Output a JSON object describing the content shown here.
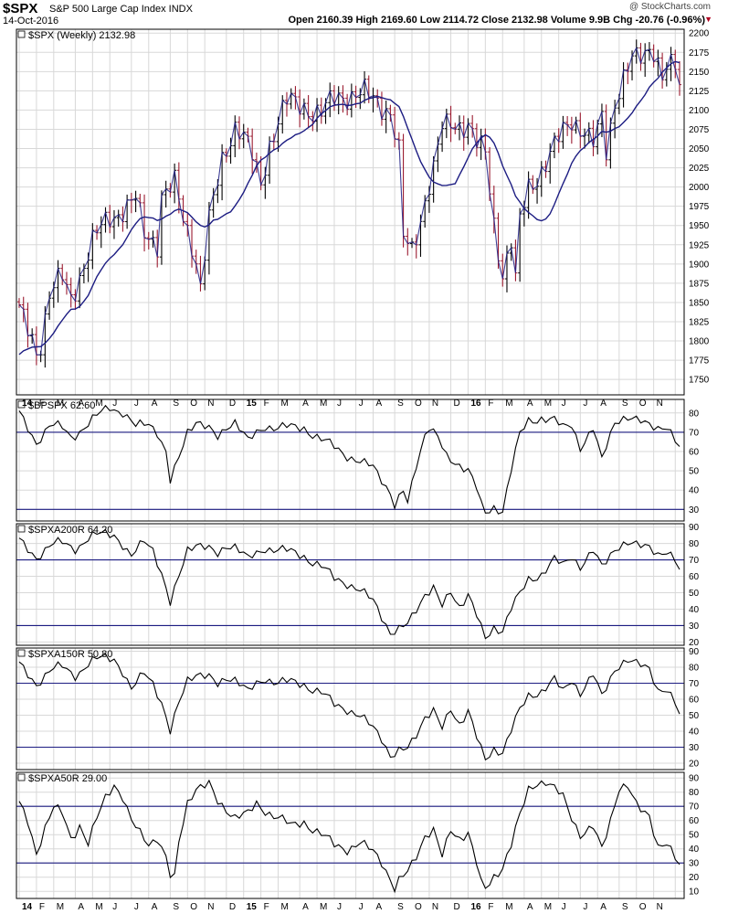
{
  "header": {
    "symbol": "$SPX",
    "name": "S&P 500 Large Cap Index INDX",
    "date": "14-Oct-2016",
    "watermark": "@ StockCharts.com",
    "ohlc": "Open 2160.39  High 2169.60  Low 2114.72  Close 2132.98  Volume 9.9B  Chg -20.76 (-0.96%)",
    "change_marker": "▼"
  },
  "colors": {
    "up": "#000000",
    "down": "#9b1b30",
    "ma": "#1c1c82",
    "grid": "#d8d8d8",
    "hline": "#1c1c82"
  },
  "chart_data": [
    {
      "type": "ohlc",
      "title": "$SPX (Weekly) 2132.98",
      "ylim": [
        1730,
        2205
      ],
      "yticks": [
        1750,
        1775,
        1800,
        1825,
        1850,
        1875,
        1900,
        1925,
        1950,
        1975,
        2000,
        2025,
        2050,
        2075,
        2100,
        2125,
        2150,
        2175,
        2200
      ],
      "overlay": "moving average",
      "anchors": [
        [
          0,
          1840
        ],
        [
          3,
          1810
        ],
        [
          4,
          1790
        ],
        [
          5,
          1800
        ],
        [
          7,
          1855
        ],
        [
          10,
          1880
        ],
        [
          12,
          1860
        ],
        [
          14,
          1890
        ],
        [
          17,
          1925
        ],
        [
          21,
          1960
        ],
        [
          24,
          1975
        ],
        [
          27,
          1985
        ],
        [
          29,
          1935
        ],
        [
          32,
          1925
        ],
        [
          33,
          1990
        ],
        [
          36,
          2010
        ],
        [
          38,
          1960
        ],
        [
          41,
          1900
        ],
        [
          42,
          1865
        ],
        [
          44,
          1960
        ],
        [
          47,
          2040
        ],
        [
          50,
          2075
        ],
        [
          52,
          2060
        ],
        [
          54,
          2040
        ],
        [
          56,
          2010
        ],
        [
          58,
          2060
        ],
        [
          62,
          2105
        ],
        [
          66,
          2110
        ],
        [
          70,
          2095
        ],
        [
          74,
          2115
        ],
        [
          78,
          2125
        ],
        [
          80,
          2125
        ],
        [
          84,
          2100
        ],
        [
          86,
          2095
        ],
        [
          88,
          2050
        ],
        [
          89,
          1940
        ],
        [
          91,
          1920
        ],
        [
          93,
          1955
        ],
        [
          96,
          2020
        ],
        [
          98,
          2080
        ],
        [
          100,
          2090
        ],
        [
          104,
          2075
        ],
        [
          106,
          2050
        ],
        [
          108,
          2045
        ],
        [
          110,
          1960
        ],
        [
          112,
          1890
        ],
        [
          114,
          1925
        ],
        [
          115,
          1870
        ],
        [
          116,
          1950
        ],
        [
          118,
          2000
        ],
        [
          122,
          2035
        ],
        [
          125,
          2060
        ],
        [
          128,
          2085
        ],
        [
          131,
          2075
        ],
        [
          133,
          2060
        ],
        [
          135,
          2090
        ],
        [
          136,
          2045
        ],
        [
          138,
          2105
        ],
        [
          140,
          2140
        ],
        [
          142,
          2170
        ],
        [
          144,
          2175
        ],
        [
          146,
          2180
        ],
        [
          147,
          2175
        ],
        [
          149,
          2135
        ],
        [
          150,
          2150
        ],
        [
          152,
          2160
        ],
        [
          153,
          2133
        ]
      ]
    },
    {
      "type": "line",
      "title": "$BPSPX 62.60",
      "ylim": [
        24,
        87
      ],
      "yticks": [
        30,
        40,
        50,
        60,
        70,
        80
      ],
      "hlines": [
        30,
        70
      ],
      "anchors": [
        [
          0,
          80
        ],
        [
          4,
          65
        ],
        [
          7,
          73
        ],
        [
          10,
          72
        ],
        [
          12,
          68
        ],
        [
          17,
          76
        ],
        [
          21,
          83
        ],
        [
          24,
          81
        ],
        [
          27,
          73
        ],
        [
          30,
          74
        ],
        [
          32,
          70
        ],
        [
          34,
          60
        ],
        [
          35,
          45
        ],
        [
          37,
          57
        ],
        [
          39,
          70
        ],
        [
          41,
          75
        ],
        [
          44,
          72
        ],
        [
          46,
          68
        ],
        [
          48,
          73
        ],
        [
          50,
          75
        ],
        [
          53,
          65
        ],
        [
          55,
          70
        ],
        [
          57,
          74
        ],
        [
          60,
          72
        ],
        [
          63,
          72
        ],
        [
          66,
          73
        ],
        [
          70,
          66
        ],
        [
          73,
          62
        ],
        [
          76,
          58
        ],
        [
          79,
          55
        ],
        [
          82,
          52
        ],
        [
          84,
          45
        ],
        [
          86,
          38
        ],
        [
          87,
          32
        ],
        [
          89,
          40
        ],
        [
          90,
          34
        ],
        [
          92,
          53
        ],
        [
          94,
          68
        ],
        [
          95,
          72
        ],
        [
          97,
          67
        ],
        [
          99,
          58
        ],
        [
          101,
          55
        ],
        [
          104,
          50
        ],
        [
          106,
          40
        ],
        [
          107,
          32
        ],
        [
          108,
          28
        ],
        [
          110,
          32
        ],
        [
          112,
          30
        ],
        [
          114,
          50
        ],
        [
          116,
          68
        ],
        [
          118,
          76
        ],
        [
          121,
          78
        ],
        [
          124,
          76
        ],
        [
          126,
          72
        ],
        [
          128,
          74
        ],
        [
          130,
          62
        ],
        [
          133,
          72
        ],
        [
          135,
          56
        ],
        [
          136,
          63
        ],
        [
          138,
          75
        ],
        [
          141,
          77
        ],
        [
          144,
          77
        ],
        [
          146,
          75
        ],
        [
          148,
          71
        ],
        [
          150,
          71
        ],
        [
          152,
          66
        ],
        [
          153,
          62.6
        ]
      ]
    },
    {
      "type": "line",
      "title": "$SPXA200R 64.20",
      "ylim": [
        18,
        92
      ],
      "yticks": [
        20,
        30,
        40,
        50,
        60,
        70,
        80,
        90
      ],
      "hlines": [
        30,
        70
      ],
      "anchors": [
        [
          0,
          82
        ],
        [
          4,
          72
        ],
        [
          7,
          78
        ],
        [
          10,
          80
        ],
        [
          13,
          78
        ],
        [
          16,
          83
        ],
        [
          19,
          85
        ],
        [
          22,
          86
        ],
        [
          24,
          80
        ],
        [
          26,
          72
        ],
        [
          29,
          81
        ],
        [
          31,
          76
        ],
        [
          33,
          62
        ],
        [
          35,
          44
        ],
        [
          37,
          60
        ],
        [
          39,
          76
        ],
        [
          41,
          79
        ],
        [
          44,
          77
        ],
        [
          46,
          74
        ],
        [
          48,
          79
        ],
        [
          50,
          78
        ],
        [
          53,
          70
        ],
        [
          55,
          74
        ],
        [
          57,
          78
        ],
        [
          60,
          76
        ],
        [
          63,
          74
        ],
        [
          66,
          73
        ],
        [
          70,
          66
        ],
        [
          73,
          58
        ],
        [
          76,
          56
        ],
        [
          79,
          52
        ],
        [
          82,
          45
        ],
        [
          84,
          35
        ],
        [
          86,
          25
        ],
        [
          88,
          28
        ],
        [
          90,
          32
        ],
        [
          92,
          40
        ],
        [
          94,
          48
        ],
        [
          96,
          52
        ],
        [
          98,
          42
        ],
        [
          100,
          52
        ],
        [
          102,
          42
        ],
        [
          104,
          48
        ],
        [
          106,
          35
        ],
        [
          107,
          28
        ],
        [
          108,
          22
        ],
        [
          110,
          30
        ],
        [
          112,
          28
        ],
        [
          114,
          40
        ],
        [
          116,
          48
        ],
        [
          118,
          58
        ],
        [
          121,
          62
        ],
        [
          124,
          70
        ],
        [
          126,
          66
        ],
        [
          128,
          72
        ],
        [
          130,
          66
        ],
        [
          133,
          76
        ],
        [
          135,
          66
        ],
        [
          138,
          76
        ],
        [
          141,
          80
        ],
        [
          144,
          80
        ],
        [
          146,
          79
        ],
        [
          148,
          72
        ],
        [
          150,
          73
        ],
        [
          152,
          70
        ],
        [
          153,
          64.2
        ]
      ]
    },
    {
      "type": "line",
      "title": "$SPXA150R 50.80",
      "ylim": [
        16,
        92
      ],
      "yticks": [
        20,
        30,
        40,
        50,
        60,
        70,
        80,
        90
      ],
      "hlines": [
        30,
        70
      ],
      "anchors": [
        [
          0,
          82
        ],
        [
          4,
          70
        ],
        [
          7,
          77
        ],
        [
          10,
          80
        ],
        [
          13,
          76
        ],
        [
          16,
          82
        ],
        [
          19,
          85
        ],
        [
          22,
          86
        ],
        [
          24,
          78
        ],
        [
          26,
          66
        ],
        [
          29,
          76
        ],
        [
          31,
          70
        ],
        [
          33,
          58
        ],
        [
          35,
          40
        ],
        [
          37,
          58
        ],
        [
          39,
          72
        ],
        [
          41,
          75
        ],
        [
          44,
          74
        ],
        [
          46,
          70
        ],
        [
          48,
          74
        ],
        [
          50,
          72
        ],
        [
          53,
          64
        ],
        [
          55,
          70
        ],
        [
          57,
          74
        ],
        [
          60,
          70
        ],
        [
          63,
          70
        ],
        [
          66,
          70
        ],
        [
          70,
          64
        ],
        [
          73,
          56
        ],
        [
          76,
          54
        ],
        [
          79,
          50
        ],
        [
          82,
          42
        ],
        [
          84,
          35
        ],
        [
          86,
          24
        ],
        [
          88,
          28
        ],
        [
          90,
          30
        ],
        [
          92,
          38
        ],
        [
          94,
          48
        ],
        [
          96,
          52
        ],
        [
          98,
          42
        ],
        [
          100,
          55
        ],
        [
          102,
          45
        ],
        [
          104,
          52
        ],
        [
          106,
          35
        ],
        [
          107,
          28
        ],
        [
          108,
          22
        ],
        [
          110,
          30
        ],
        [
          112,
          28
        ],
        [
          114,
          40
        ],
        [
          116,
          52
        ],
        [
          118,
          62
        ],
        [
          121,
          66
        ],
        [
          124,
          72
        ],
        [
          126,
          64
        ],
        [
          128,
          72
        ],
        [
          130,
          64
        ],
        [
          133,
          76
        ],
        [
          135,
          62
        ],
        [
          138,
          78
        ],
        [
          141,
          84
        ],
        [
          144,
          83
        ],
        [
          146,
          80
        ],
        [
          148,
          64
        ],
        [
          150,
          64
        ],
        [
          152,
          58
        ],
        [
          153,
          50.8
        ]
      ]
    },
    {
      "type": "line",
      "title": "$SPXA50R 29.00",
      "ylim": [
        5,
        94
      ],
      "yticks": [
        10,
        20,
        30,
        40,
        50,
        60,
        70,
        80,
        90
      ],
      "hlines": [
        30,
        70
      ],
      "anchors": [
        [
          0,
          72
        ],
        [
          2,
          60
        ],
        [
          4,
          38
        ],
        [
          6,
          55
        ],
        [
          8,
          68
        ],
        [
          10,
          64
        ],
        [
          12,
          48
        ],
        [
          14,
          58
        ],
        [
          16,
          44
        ],
        [
          18,
          60
        ],
        [
          20,
          75
        ],
        [
          22,
          86
        ],
        [
          24,
          78
        ],
        [
          26,
          60
        ],
        [
          28,
          50
        ],
        [
          30,
          42
        ],
        [
          32,
          48
        ],
        [
          34,
          35
        ],
        [
          35,
          22
        ],
        [
          36,
          20
        ],
        [
          37,
          45
        ],
        [
          39,
          72
        ],
        [
          41,
          82
        ],
        [
          44,
          86
        ],
        [
          46,
          74
        ],
        [
          48,
          68
        ],
        [
          50,
          62
        ],
        [
          53,
          64
        ],
        [
          55,
          72
        ],
        [
          57,
          68
        ],
        [
          60,
          62
        ],
        [
          63,
          55
        ],
        [
          66,
          60
        ],
        [
          70,
          50
        ],
        [
          73,
          42
        ],
        [
          76,
          40
        ],
        [
          79,
          45
        ],
        [
          82,
          38
        ],
        [
          84,
          30
        ],
        [
          86,
          18
        ],
        [
          87,
          12
        ],
        [
          88,
          18
        ],
        [
          90,
          25
        ],
        [
          92,
          35
        ],
        [
          94,
          48
        ],
        [
          96,
          52
        ],
        [
          98,
          35
        ],
        [
          100,
          55
        ],
        [
          102,
          48
        ],
        [
          104,
          50
        ],
        [
          106,
          28
        ],
        [
          107,
          15
        ],
        [
          108,
          12
        ],
        [
          110,
          22
        ],
        [
          112,
          28
        ],
        [
          114,
          42
        ],
        [
          116,
          62
        ],
        [
          118,
          82
        ],
        [
          120,
          88
        ],
        [
          122,
          88
        ],
        [
          124,
          82
        ],
        [
          126,
          76
        ],
        [
          128,
          62
        ],
        [
          130,
          50
        ],
        [
          133,
          56
        ],
        [
          135,
          40
        ],
        [
          137,
          60
        ],
        [
          139,
          82
        ],
        [
          141,
          84
        ],
        [
          143,
          72
        ],
        [
          146,
          64
        ],
        [
          148,
          40
        ],
        [
          150,
          42
        ],
        [
          152,
          34
        ],
        [
          153,
          29
        ]
      ]
    }
  ],
  "xaxis_labels": [
    "14",
    "F",
    "M",
    "A",
    "M",
    "J",
    "J",
    "A",
    "S",
    "O",
    "N",
    "D",
    "15",
    "F",
    "M",
    "A",
    "M",
    "J",
    "J",
    "A",
    "S",
    "O",
    "N",
    "D",
    "16",
    "F",
    "M",
    "A",
    "M",
    "J",
    "J",
    "A",
    "S",
    "O",
    "N"
  ]
}
